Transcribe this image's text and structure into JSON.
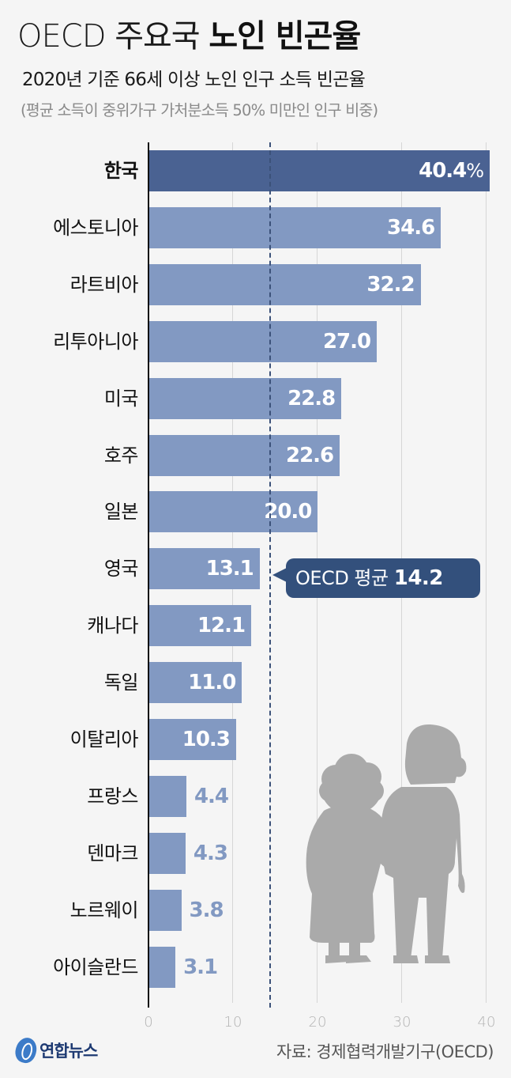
{
  "header": {
    "title_light": "OECD 주요국 ",
    "title_bold": "노인 빈곤율",
    "subtitle": "2020년 기준 66세 이상 노인 인구 소득 빈곤율",
    "note": "(평균 소득이 중위가구 가처분소득 50% 미만인 인구 비중)"
  },
  "chart_data": {
    "type": "bar",
    "orientation": "horizontal",
    "title": "OECD 주요국 노인 빈곤율",
    "subtitle": "2020년 기준 66세 이상 노인 인구 소득 빈곤율",
    "note": "(평균 소득이 중위가구 가처분소득 50% 미만인 인구 비중)",
    "unit": "%",
    "categories": [
      "한국",
      "에스토니아",
      "라트비아",
      "리투아니아",
      "미국",
      "호주",
      "일본",
      "영국",
      "캐나다",
      "독일",
      "이탈리아",
      "프랑스",
      "덴마크",
      "노르웨이",
      "아이슬란드"
    ],
    "values": [
      40.4,
      34.6,
      32.2,
      27.0,
      22.8,
      22.6,
      20.0,
      13.1,
      12.1,
      11.0,
      10.3,
      4.4,
      4.3,
      3.8,
      3.1
    ],
    "value_labels": [
      "40.4",
      "34.6",
      "32.2",
      "27.0",
      "22.8",
      "22.6",
      "20.0",
      "13.1",
      "12.1",
      "11.0",
      "10.3",
      "4.4",
      "4.3",
      "3.8",
      "3.1"
    ],
    "highlight": "한국",
    "reference_line": {
      "label": "OECD 평균",
      "value": 14.2
    },
    "xlim": [
      0,
      40
    ],
    "xticks": [
      0,
      10,
      20,
      30,
      40
    ],
    "grid": true,
    "colors": {
      "bar": "#8299c2",
      "highlight": "#4a6292",
      "reference": "#33507c"
    }
  },
  "callout": {
    "label": "OECD 평균",
    "value": "14.2"
  },
  "axis": {
    "ticks": [
      "0",
      "10",
      "20",
      "30",
      "40"
    ]
  },
  "footer": {
    "logo": "연합뉴스",
    "source": "자료: 경제협력개발기구(OECD)"
  },
  "illustration": "elderly-couple-silhouette"
}
